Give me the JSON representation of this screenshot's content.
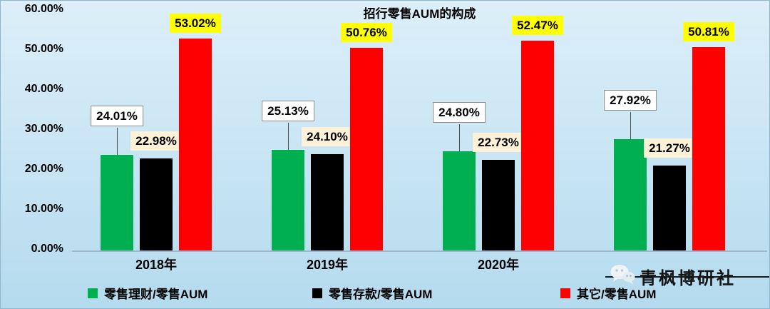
{
  "chart_data": {
    "type": "bar",
    "title": "招行零售AUM的构成",
    "categories": [
      "2018年",
      "2019年",
      "2020年",
      ""
    ],
    "series": [
      {
        "name": "零售理财/零售AUM",
        "color": "#00b050",
        "values": [
          24.01,
          25.13,
          24.8,
          27.92
        ]
      },
      {
        "name": "零售存款/零售AUM",
        "color": "#000000",
        "values": [
          22.98,
          24.1,
          22.73,
          21.27
        ]
      },
      {
        "name": "其它/零售AUM",
        "color": "#ff0000",
        "values": [
          53.02,
          50.76,
          52.47,
          50.81
        ]
      }
    ],
    "y_ticks": [
      "60.00%",
      "50.00%",
      "40.00%",
      "30.00%",
      "20.00%",
      "10.00%",
      "0.00%"
    ],
    "ylim": [
      0,
      60
    ],
    "grid": false,
    "legend_position": "bottom",
    "label_colors": {
      "series1_label_bg": "#ffffff",
      "series2_label_bg": "#fdf2d8",
      "series3_label_bg": "#ffff00"
    }
  },
  "watermark": {
    "text": "青枫博研社",
    "icon": "wechat-icon"
  }
}
